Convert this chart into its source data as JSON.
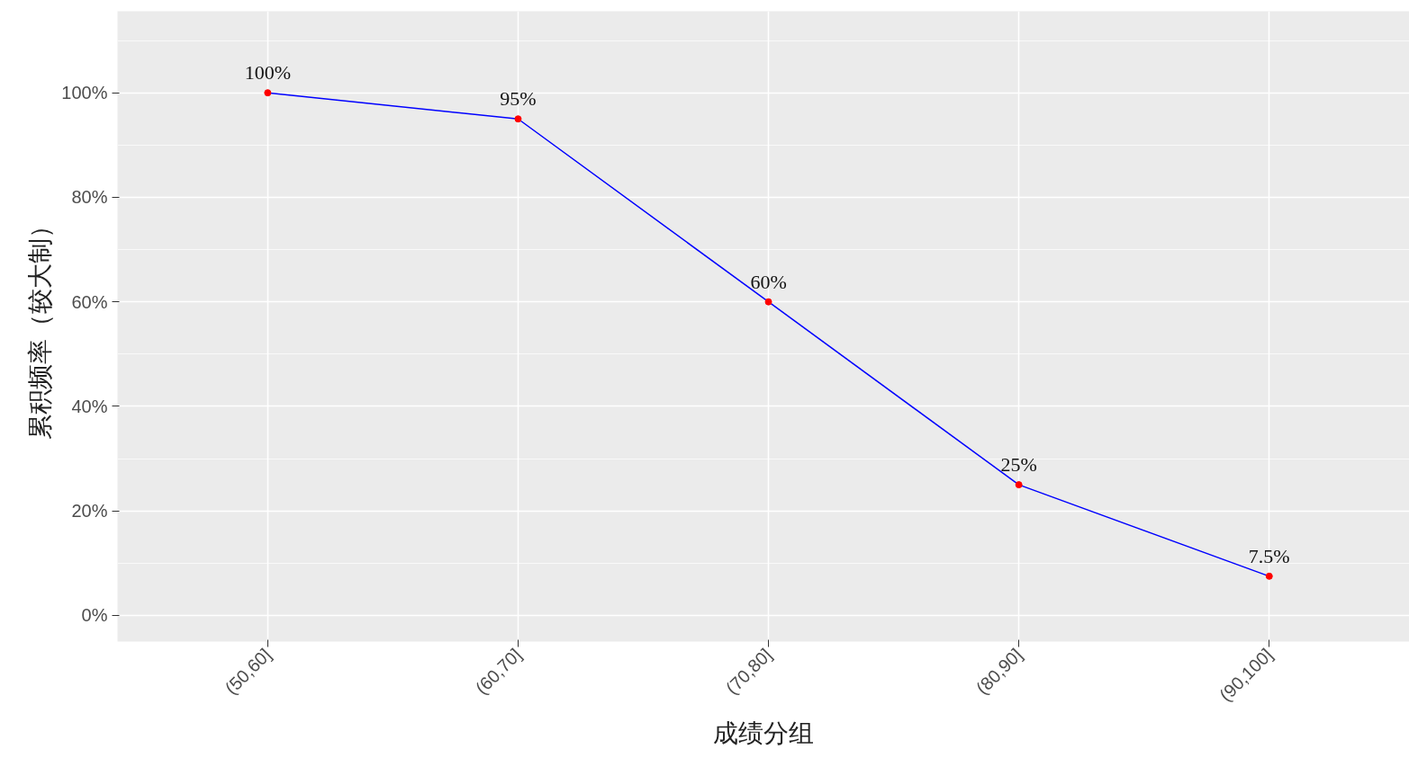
{
  "chart_data": {
    "type": "line",
    "xlabel": "成绩分组",
    "ylabel": "累积频率（较大制）",
    "categories": [
      "(50,60]",
      "(60,70]",
      "(70,80]",
      "(80,90]",
      "(90,100]"
    ],
    "series": [
      {
        "color": "#0000ff",
        "colors": [
          "#ff0000",
          "#ff0000",
          "#ff0000",
          "#ff0000",
          "#ff0000"
        ],
        "values": [
          100,
          95,
          60,
          25,
          7.5
        ],
        "value_labels": [
          "100%",
          "95%",
          "60%",
          "25%",
          "7.5%"
        ]
      }
    ],
    "ylim": [
      -5,
      115.6
    ],
    "yticks": [
      {
        "value": 0,
        "label": "0%"
      },
      {
        "value": 20,
        "label": "20%"
      },
      {
        "value": 40,
        "label": "40%"
      },
      {
        "value": 60,
        "label": "60%"
      },
      {
        "value": 80,
        "label": "80%"
      },
      {
        "value": 100,
        "label": "100%"
      }
    ],
    "grid": true,
    "marker": "circle",
    "line_style": "solid"
  }
}
